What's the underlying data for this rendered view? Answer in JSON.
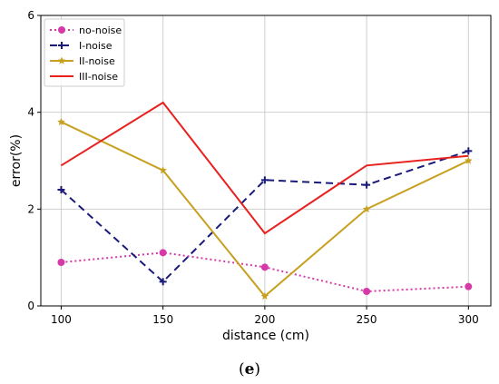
{
  "chart_data": {
    "type": "line",
    "title": "",
    "xlabel": "distance (cm)",
    "ylabel": "error(%)",
    "x": [
      100,
      150,
      200,
      250,
      300
    ],
    "xlim": [
      90,
      311
    ],
    "ylim": [
      0,
      6
    ],
    "xticks": [
      100,
      150,
      200,
      250,
      300
    ],
    "yticks": [
      0,
      2,
      4,
      6
    ],
    "grid": true,
    "legend_position": "top-left",
    "series": [
      {
        "name": "no-noise",
        "values": [
          0.9,
          1.1,
          0.8,
          0.3,
          0.4
        ],
        "color": "#d63aa8",
        "style": "dotted",
        "marker": "circle"
      },
      {
        "name": "I-noise",
        "values": [
          2.4,
          0.5,
          2.6,
          2.5,
          3.2
        ],
        "color": "#1a1a7a",
        "style": "dashed",
        "marker": "plus"
      },
      {
        "name": "II-noise",
        "values": [
          3.8,
          2.8,
          0.2,
          2.0,
          3.0
        ],
        "color": "#c8a020",
        "style": "solid",
        "marker": "star"
      },
      {
        "name": "III-noise",
        "values": [
          2.9,
          4.2,
          1.5,
          2.9,
          3.1
        ],
        "color": "#e8201e",
        "style": "solid",
        "marker": "none"
      }
    ]
  },
  "caption": {
    "open": "(",
    "letter": "e",
    "close": ")"
  }
}
